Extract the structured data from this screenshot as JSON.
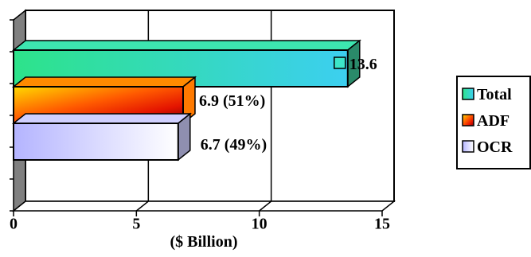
{
  "chart_data": {
    "type": "bar",
    "orientation": "horizontal",
    "style": "3d",
    "categories": [
      "Total",
      "ADF",
      "OCR"
    ],
    "values": [
      13.6,
      6.9,
      6.7
    ],
    "data_labels": [
      "13.6",
      "6.9 (51%)",
      "6.7 (49%)"
    ],
    "xlabel": "($ Billion)",
    "ylabel": "",
    "xlim": [
      0,
      15
    ],
    "x_ticks": [
      "0",
      "5",
      "10",
      "15"
    ],
    "grid": "vertical",
    "legend": {
      "position": "right",
      "entries": [
        "Total",
        "ADF",
        "OCR"
      ]
    },
    "colors": {
      "Total": [
        "#2de38a",
        "#3ccff0"
      ],
      "ADF": [
        "#ffcf00",
        "#e02000",
        "#7a0000"
      ],
      "OCR": [
        "#b8b8ff",
        "#ffffff"
      ]
    }
  }
}
